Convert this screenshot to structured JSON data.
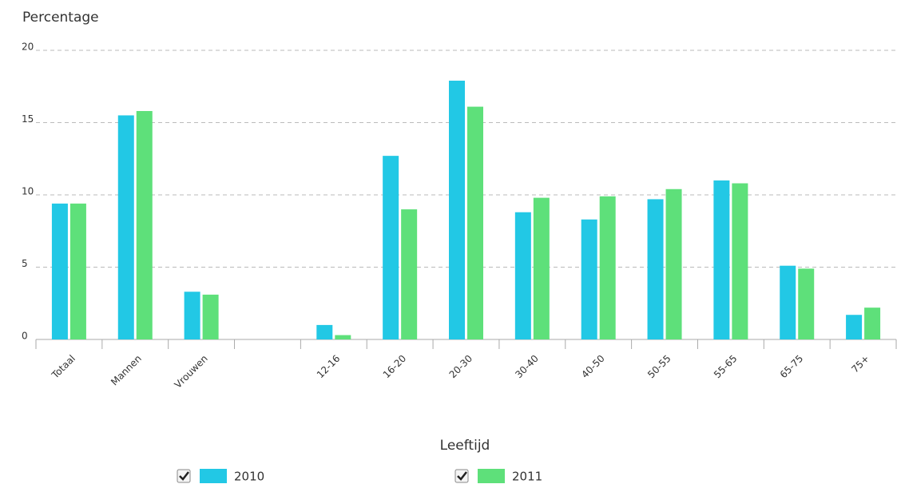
{
  "chart_data": {
    "type": "bar",
    "y_label": "Percentage",
    "x_label": "Leeftijd",
    "categories": [
      "Totaal",
      "Mannen",
      "Vrouwen",
      null,
      "12-16",
      "16-20",
      "20-30",
      "30-40",
      "40-50",
      "50-55",
      "55-65",
      "65-75",
      "75+"
    ],
    "series": [
      {
        "name": "2010",
        "color": "#22c8e5",
        "values": [
          9.4,
          15.5,
          3.3,
          null,
          1.0,
          12.7,
          17.9,
          8.8,
          8.3,
          9.7,
          11.0,
          5.1,
          1.7
        ]
      },
      {
        "name": "2011",
        "color": "#5ee07a",
        "values": [
          9.4,
          15.8,
          3.1,
          null,
          0.3,
          9.0,
          16.1,
          9.8,
          9.9,
          10.4,
          10.8,
          4.9,
          2.2
        ]
      }
    ],
    "ylim": [
      0,
      20
    ],
    "yticks": [
      0,
      5,
      10,
      15,
      20
    ],
    "grid": true
  }
}
